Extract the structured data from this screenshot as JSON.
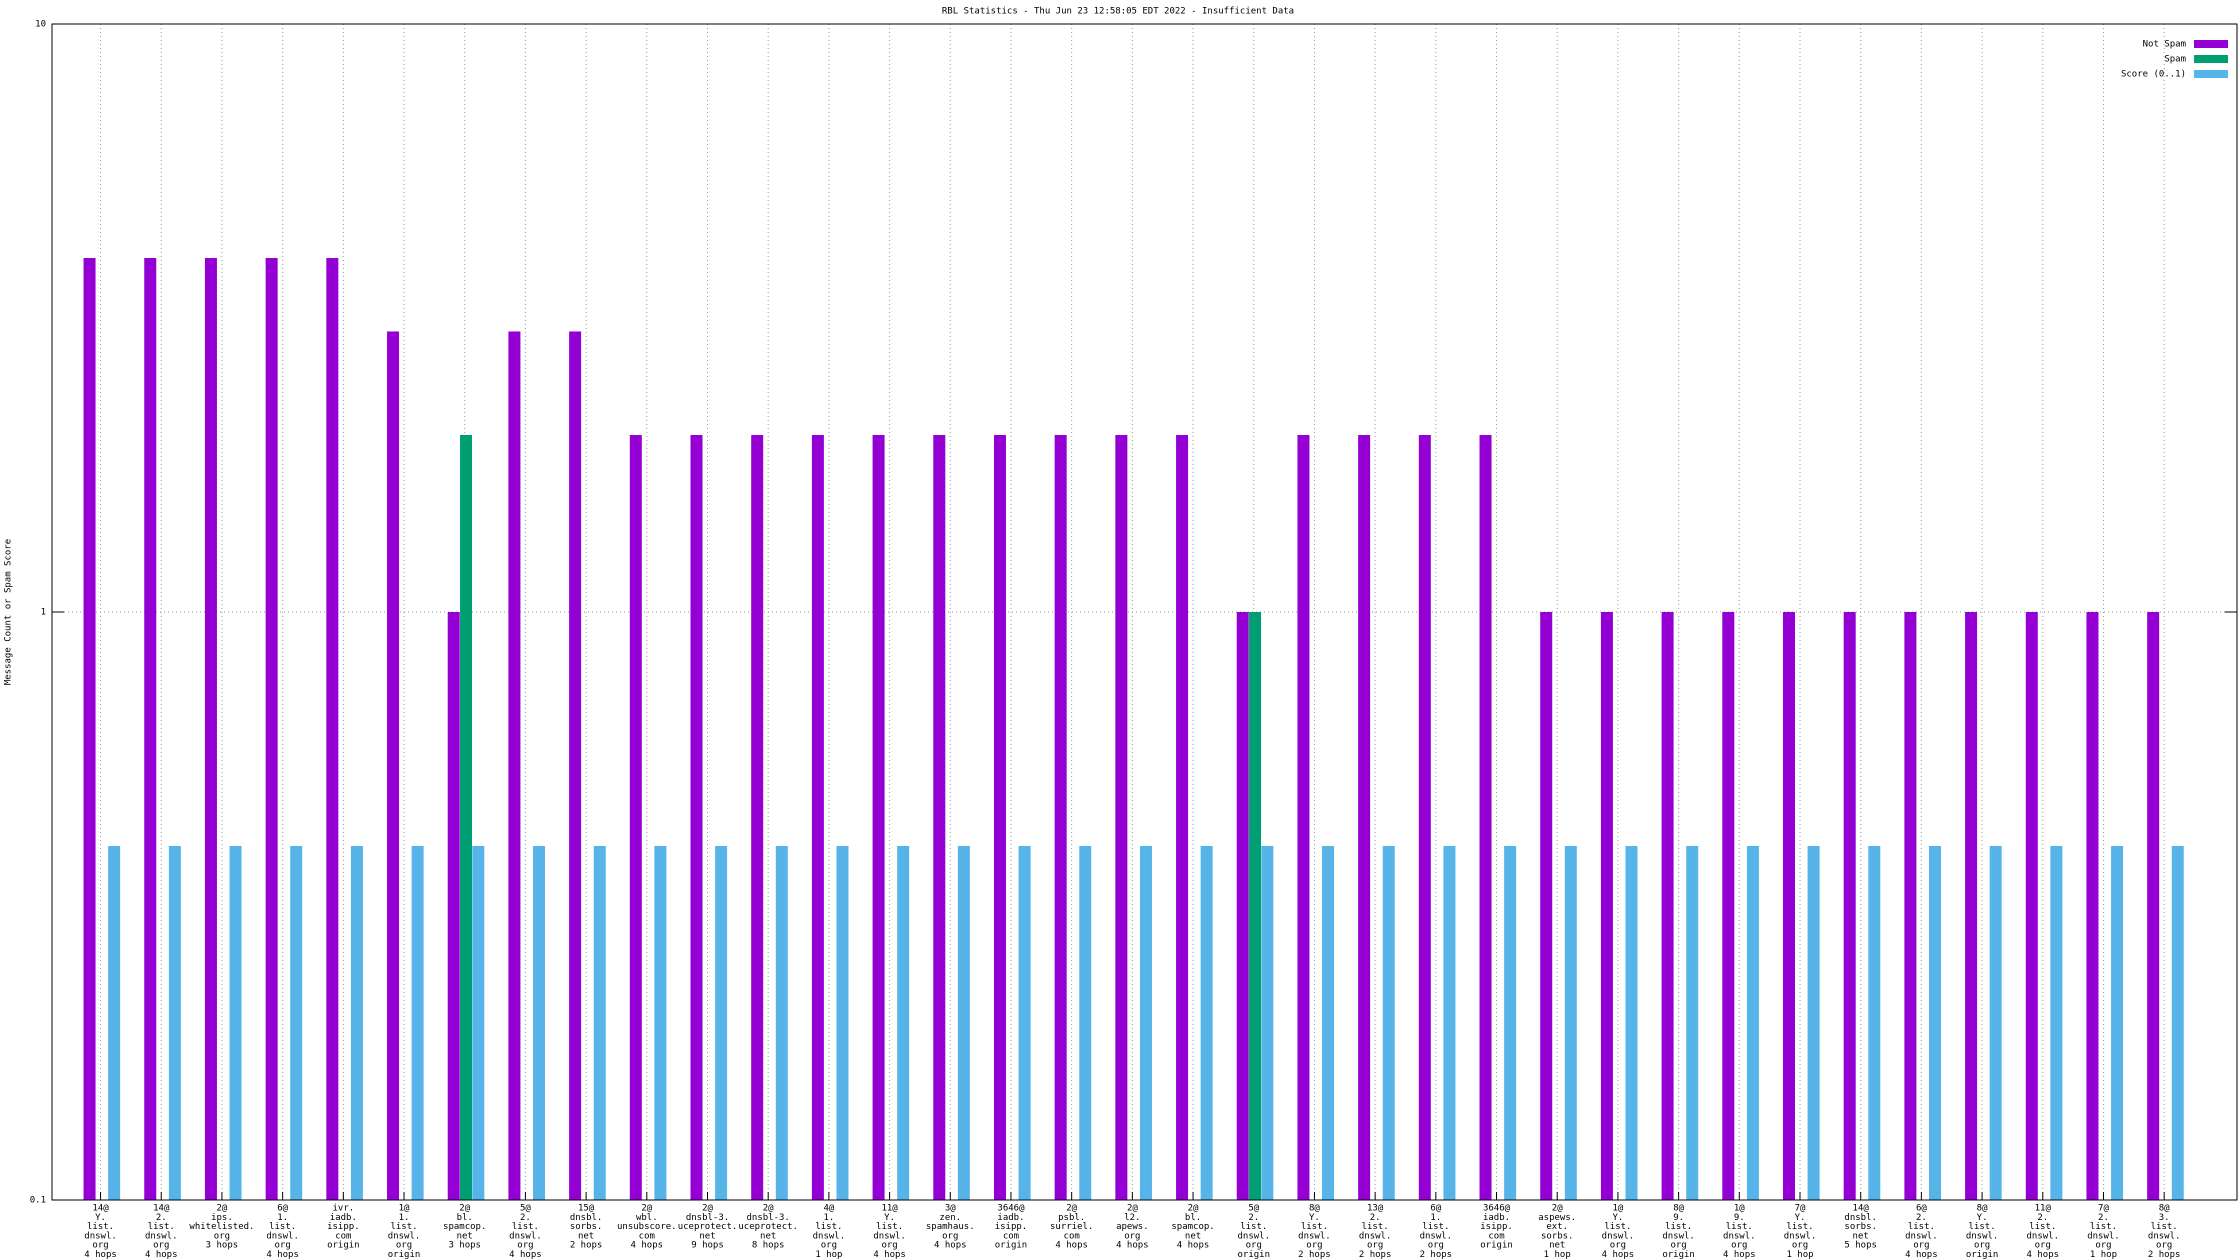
{
  "chart_data": {
    "type": "bar",
    "title": "RBL Statistics - Thu Jun 23 12:58:05 EDT 2022 - Insufficient Data",
    "y_label": "Message Count or Spam Score",
    "log_y": true,
    "grid": true,
    "legend": "top-right",
    "ylim": [
      0.1,
      10
    ],
    "yticks": [
      0.1,
      1,
      10
    ],
    "categories": [
      [
        "14@",
        "Y.",
        "list.",
        "dnswl.",
        "org",
        "4 hops"
      ],
      [
        "14@",
        "2.",
        "list.",
        "dnswl.",
        "org",
        "4 hops"
      ],
      [
        "2@",
        "ips.",
        "whitelisted.",
        "org",
        "3 hops"
      ],
      [
        "6@",
        "1.",
        "list.",
        "dnswl.",
        "org",
        "4 hops"
      ],
      [
        "ivr.",
        "iadb.",
        "isipp.",
        "com",
        "origin"
      ],
      [
        "1@",
        "1.",
        "list.",
        "dnswl.",
        "org",
        "origin"
      ],
      [
        "2@",
        "bl.",
        "spamcop.",
        "net",
        "3 hops"
      ],
      [
        "5@",
        "2.",
        "list.",
        "dnswl.",
        "org",
        "4 hops"
      ],
      [
        "15@",
        "dnsbl.",
        "sorbs.",
        "net",
        "2 hops"
      ],
      [
        "2@",
        "wbl.",
        "unsubscore.",
        "com",
        "4 hops"
      ],
      [
        "2@",
        "dnsbl-3.",
        "uceprotect.",
        "net",
        "9 hops"
      ],
      [
        "2@",
        "dnsbl-3.",
        "uceprotect.",
        "net",
        "8 hops"
      ],
      [
        "4@",
        "1.",
        "list.",
        "dnswl.",
        "org",
        "1 hop"
      ],
      [
        "11@",
        "Y.",
        "list.",
        "dnswl.",
        "org",
        "4 hops"
      ],
      [
        "3@",
        "zen.",
        "spamhaus.",
        "org",
        "4 hops"
      ],
      [
        "3646@",
        "iadb.",
        "isipp.",
        "com",
        "origin"
      ],
      [
        "2@",
        "psbl.",
        "surriel.",
        "com",
        "4 hops"
      ],
      [
        "2@",
        "l2.",
        "apews.",
        "org",
        "4 hops"
      ],
      [
        "2@",
        "bl.",
        "spamcop.",
        "net",
        "4 hops"
      ],
      [
        "5@",
        "2.",
        "list.",
        "dnswl.",
        "org",
        "origin"
      ],
      [
        "8@",
        "Y.",
        "list.",
        "dnswl.",
        "org",
        "2 hops"
      ],
      [
        "13@",
        "2.",
        "list.",
        "dnswl.",
        "org",
        "2 hops"
      ],
      [
        "6@",
        "1.",
        "list.",
        "dnswl.",
        "org",
        "2 hops"
      ],
      [
        "3646@",
        "iadb.",
        "isipp.",
        "com",
        "origin"
      ],
      [
        "2@",
        "aspews.",
        "ext.",
        "sorbs.",
        "net",
        "1 hop"
      ],
      [
        "1@",
        "Y.",
        "list.",
        "dnswl.",
        "org",
        "4 hops"
      ],
      [
        "8@",
        "9.",
        "list.",
        "dnswl.",
        "org",
        "origin"
      ],
      [
        "1@",
        "9.",
        "list.",
        "dnswl.",
        "org",
        "4 hops"
      ],
      [
        "7@",
        "Y.",
        "list.",
        "dnswl.",
        "org",
        "1 hop"
      ],
      [
        "14@",
        "dnsbl.",
        "sorbs.",
        "net",
        "5 hops"
      ],
      [
        "6@",
        "2.",
        "list.",
        "dnswl.",
        "org",
        "4 hops"
      ],
      [
        "8@",
        "Y.",
        "list.",
        "dnswl.",
        "org",
        "origin"
      ],
      [
        "11@",
        "2.",
        "list.",
        "dnswl.",
        "org",
        "4 hops"
      ],
      [
        "7@",
        "2.",
        "list.",
        "dnswl.",
        "org",
        "1 hop"
      ],
      [
        "8@",
        "3.",
        "list.",
        "dnswl.",
        "org",
        "2 hops"
      ]
    ],
    "series": [
      {
        "name": "Not Spam",
        "color": "#9400d3",
        "values": [
          4,
          4,
          4,
          4,
          4,
          3,
          1,
          3,
          3,
          2,
          2,
          2,
          2,
          2,
          2,
          2,
          2,
          2,
          2,
          1,
          2,
          2,
          2,
          2,
          1,
          1,
          1,
          1,
          1,
          1,
          1,
          1,
          1,
          1,
          1
        ]
      },
      {
        "name": "Spam",
        "color": "#009e73",
        "values": [
          null,
          null,
          null,
          null,
          null,
          null,
          2,
          null,
          null,
          null,
          null,
          null,
          null,
          null,
          null,
          null,
          null,
          null,
          null,
          1,
          null,
          null,
          null,
          null,
          null,
          null,
          null,
          null,
          null,
          null,
          null,
          null,
          null,
          null,
          null
        ]
      },
      {
        "name": "Score (0..1)",
        "color": "#56b4e9",
        "values": [
          0.4,
          0.4,
          0.4,
          0.4,
          0.4,
          0.4,
          0.4,
          0.4,
          0.4,
          0.4,
          0.4,
          0.4,
          0.4,
          0.4,
          0.4,
          0.4,
          0.4,
          0.4,
          0.4,
          0.4,
          0.4,
          0.4,
          0.4,
          0.4,
          0.4,
          0.4,
          0.4,
          0.4,
          0.4,
          0.4,
          0.4,
          0.4,
          0.4,
          0.4,
          0.4
        ]
      }
    ]
  }
}
